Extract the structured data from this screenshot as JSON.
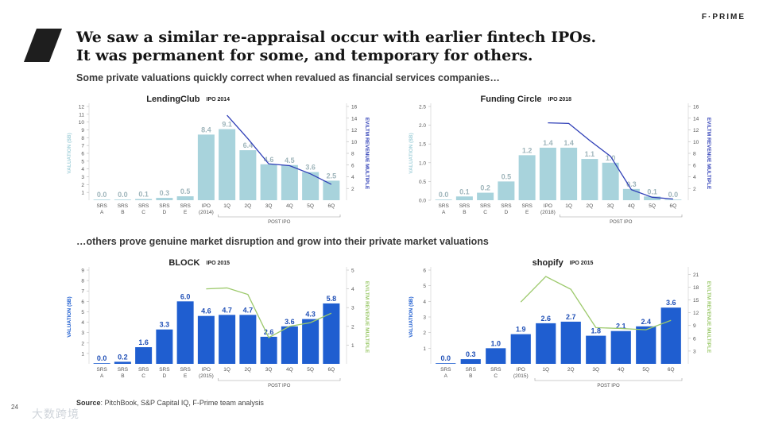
{
  "brand": "F·PRIME",
  "title_line1": "We saw a similar re-appraisal occur with earlier fintech IPOs.",
  "title_line2": "It was permanent for some, and temporary for others.",
  "subtitle1": "Some private valuations quickly correct when revalued as financial services companies…",
  "subtitle2": "…others prove genuine market disruption and grow into their private market valuations",
  "source_label": "Source",
  "source_text": ": PitchBook, S&P Capital IQ, F-Prime team analysis",
  "page_number": "24",
  "watermark": "大数跨境",
  "colors": {
    "light_bar": "#a8d3dc",
    "dark_bar": "#1f5ed0",
    "line_dark": "#2f3fb7",
    "line_green": "#9cc96b"
  },
  "chart_data": [
    {
      "type": "bar",
      "company": "LendingClub",
      "ipo_label": "IPO 2014",
      "categories": [
        "SRS A",
        "SRS B",
        "SRS C",
        "SRS D",
        "SRS E",
        "IPO (2014)",
        "1Q",
        "2Q",
        "3Q",
        "4Q",
        "5Q",
        "6Q"
      ],
      "values": [
        0.0,
        0.0,
        0.1,
        0.3,
        0.5,
        8.4,
        9.1,
        6.4,
        4.6,
        4.5,
        3.6,
        2.5
      ],
      "value_labels": [
        "0.0",
        "0.0",
        "0.1",
        "0.3",
        "0.5",
        "8.4",
        "9.1",
        "6.4",
        "4.6",
        "4.5",
        "3.6",
        "2.5"
      ],
      "ylabel": "VALUATION ($B)",
      "y2label": "EV/LTM REVENUE MULTIPLE",
      "ylim": [
        0,
        12
      ],
      "yticks": [
        1,
        2,
        3,
        4,
        5,
        6,
        7,
        8,
        9,
        10,
        11,
        12
      ],
      "y2lim": [
        0,
        16
      ],
      "y2ticks": [
        2,
        4,
        6,
        8,
        10,
        12,
        14,
        16
      ],
      "post_ipo_label": "POST IPO",
      "line_series": {
        "x": [
          "1Q",
          "2Q",
          "3Q",
          "4Q",
          "5Q",
          "6Q"
        ],
        "values": [
          14.5,
          10.5,
          6.2,
          5.9,
          4.5,
          2.7
        ]
      },
      "bar_color": "light",
      "line_color": "dark"
    },
    {
      "type": "bar",
      "company": "Funding Circle",
      "ipo_label": "IPO 2018",
      "categories": [
        "SRS A",
        "SRS B",
        "SRS C",
        "SRS D",
        "SRS E",
        "IPO (2018)",
        "1Q",
        "2Q",
        "3Q",
        "4Q",
        "5Q",
        "6Q"
      ],
      "values": [
        0.0,
        0.1,
        0.2,
        0.5,
        1.2,
        1.4,
        1.4,
        1.1,
        1.0,
        0.3,
        0.1,
        0.0
      ],
      "value_labels": [
        "0.0",
        "0.1",
        "0.2",
        "0.5",
        "1.2",
        "1.4",
        "1.4",
        "1.1",
        "1.0",
        "0.3",
        "0.1",
        "0.0"
      ],
      "ylabel": "VALUATION ($B)",
      "y2label": "EV/LTM REVENUE MULTIPLE",
      "ylim": [
        0,
        2.5
      ],
      "yticks": [
        "0.0",
        "0.5",
        "1.0",
        "1.5",
        "2.0",
        "2.5"
      ],
      "y2lim": [
        0,
        16
      ],
      "y2ticks": [
        2,
        4,
        6,
        8,
        10,
        12,
        14,
        16
      ],
      "post_ipo_label": "POST IPO",
      "line_series": {
        "x": [
          "IPO (2018)",
          "1Q",
          "2Q",
          "3Q",
          "4Q",
          "5Q",
          "6Q"
        ],
        "values": [
          13.2,
          13.1,
          10.2,
          7.5,
          1.8,
          0.5,
          0.2
        ]
      },
      "bar_color": "light",
      "line_color": "dark"
    },
    {
      "type": "bar",
      "company": "BLOCK",
      "ipo_label": "IPO 2015",
      "categories": [
        "SRS A",
        "SRS B",
        "SRS C",
        "SRS D",
        "SRS E",
        "IPO (2015)",
        "1Q",
        "2Q",
        "3Q",
        "4Q",
        "5Q",
        "6Q"
      ],
      "values": [
        0.0,
        0.2,
        1.6,
        3.3,
        6.0,
        4.6,
        4.7,
        4.7,
        2.6,
        3.6,
        4.3,
        5.8
      ],
      "value_labels": [
        "0.0",
        "0.2",
        "1.6",
        "3.3",
        "6.0",
        "4.6",
        "4.7",
        "4.7",
        "2.6",
        "3.6",
        "4.3",
        "5.8"
      ],
      "ylabel": "VALUATION ($B)",
      "y2label": "EV/LTM REVENUE MULTIPLE",
      "ylim": [
        0,
        9
      ],
      "yticks": [
        1,
        2,
        3,
        4,
        5,
        6,
        7,
        8,
        9
      ],
      "y2lim": [
        0,
        5
      ],
      "y2ticks": [
        1,
        2,
        3,
        4,
        5
      ],
      "post_ipo_label": "POST IPO",
      "line_series": {
        "x": [
          "IPO (2015)",
          "1Q",
          "2Q",
          "3Q",
          "4Q",
          "5Q",
          "6Q"
        ],
        "values": [
          4.0,
          4.05,
          3.7,
          1.4,
          2.0,
          2.2,
          2.7
        ]
      },
      "bar_color": "dark",
      "line_color": "green"
    },
    {
      "type": "bar",
      "company": "shopify",
      "ipo_label": "IPO 2015",
      "categories": [
        "SRS A",
        "SRS B",
        "SRS C",
        "IPO (2015)",
        "1Q",
        "2Q",
        "3Q",
        "4Q",
        "5Q",
        "6Q"
      ],
      "values": [
        0.0,
        0.3,
        1.0,
        1.9,
        2.6,
        2.7,
        1.8,
        2.1,
        2.4,
        3.6
      ],
      "value_labels": [
        "0.0",
        "0.3",
        "1.0",
        "1.9",
        "2.6",
        "2.7",
        "1.8",
        "2.1",
        "2.4",
        "3.6"
      ],
      "ylabel": "VALUATION ($B)",
      "y2label": "EV/LTM REVENUE MULTIPLE",
      "ylim": [
        0,
        6
      ],
      "yticks": [
        1,
        2,
        3,
        4,
        5,
        6
      ],
      "y2lim": [
        0,
        22
      ],
      "y2ticks": [
        3,
        6,
        9,
        12,
        15,
        18,
        21
      ],
      "post_ipo_label": "POST IPO",
      "line_series": {
        "x": [
          "IPO (2015)",
          "1Q",
          "2Q",
          "3Q",
          "4Q",
          "5Q",
          "6Q"
        ],
        "values": [
          14.5,
          20.5,
          17.5,
          8.5,
          8.3,
          8.0,
          10.2
        ]
      },
      "bar_color": "dark",
      "line_color": "green"
    }
  ]
}
